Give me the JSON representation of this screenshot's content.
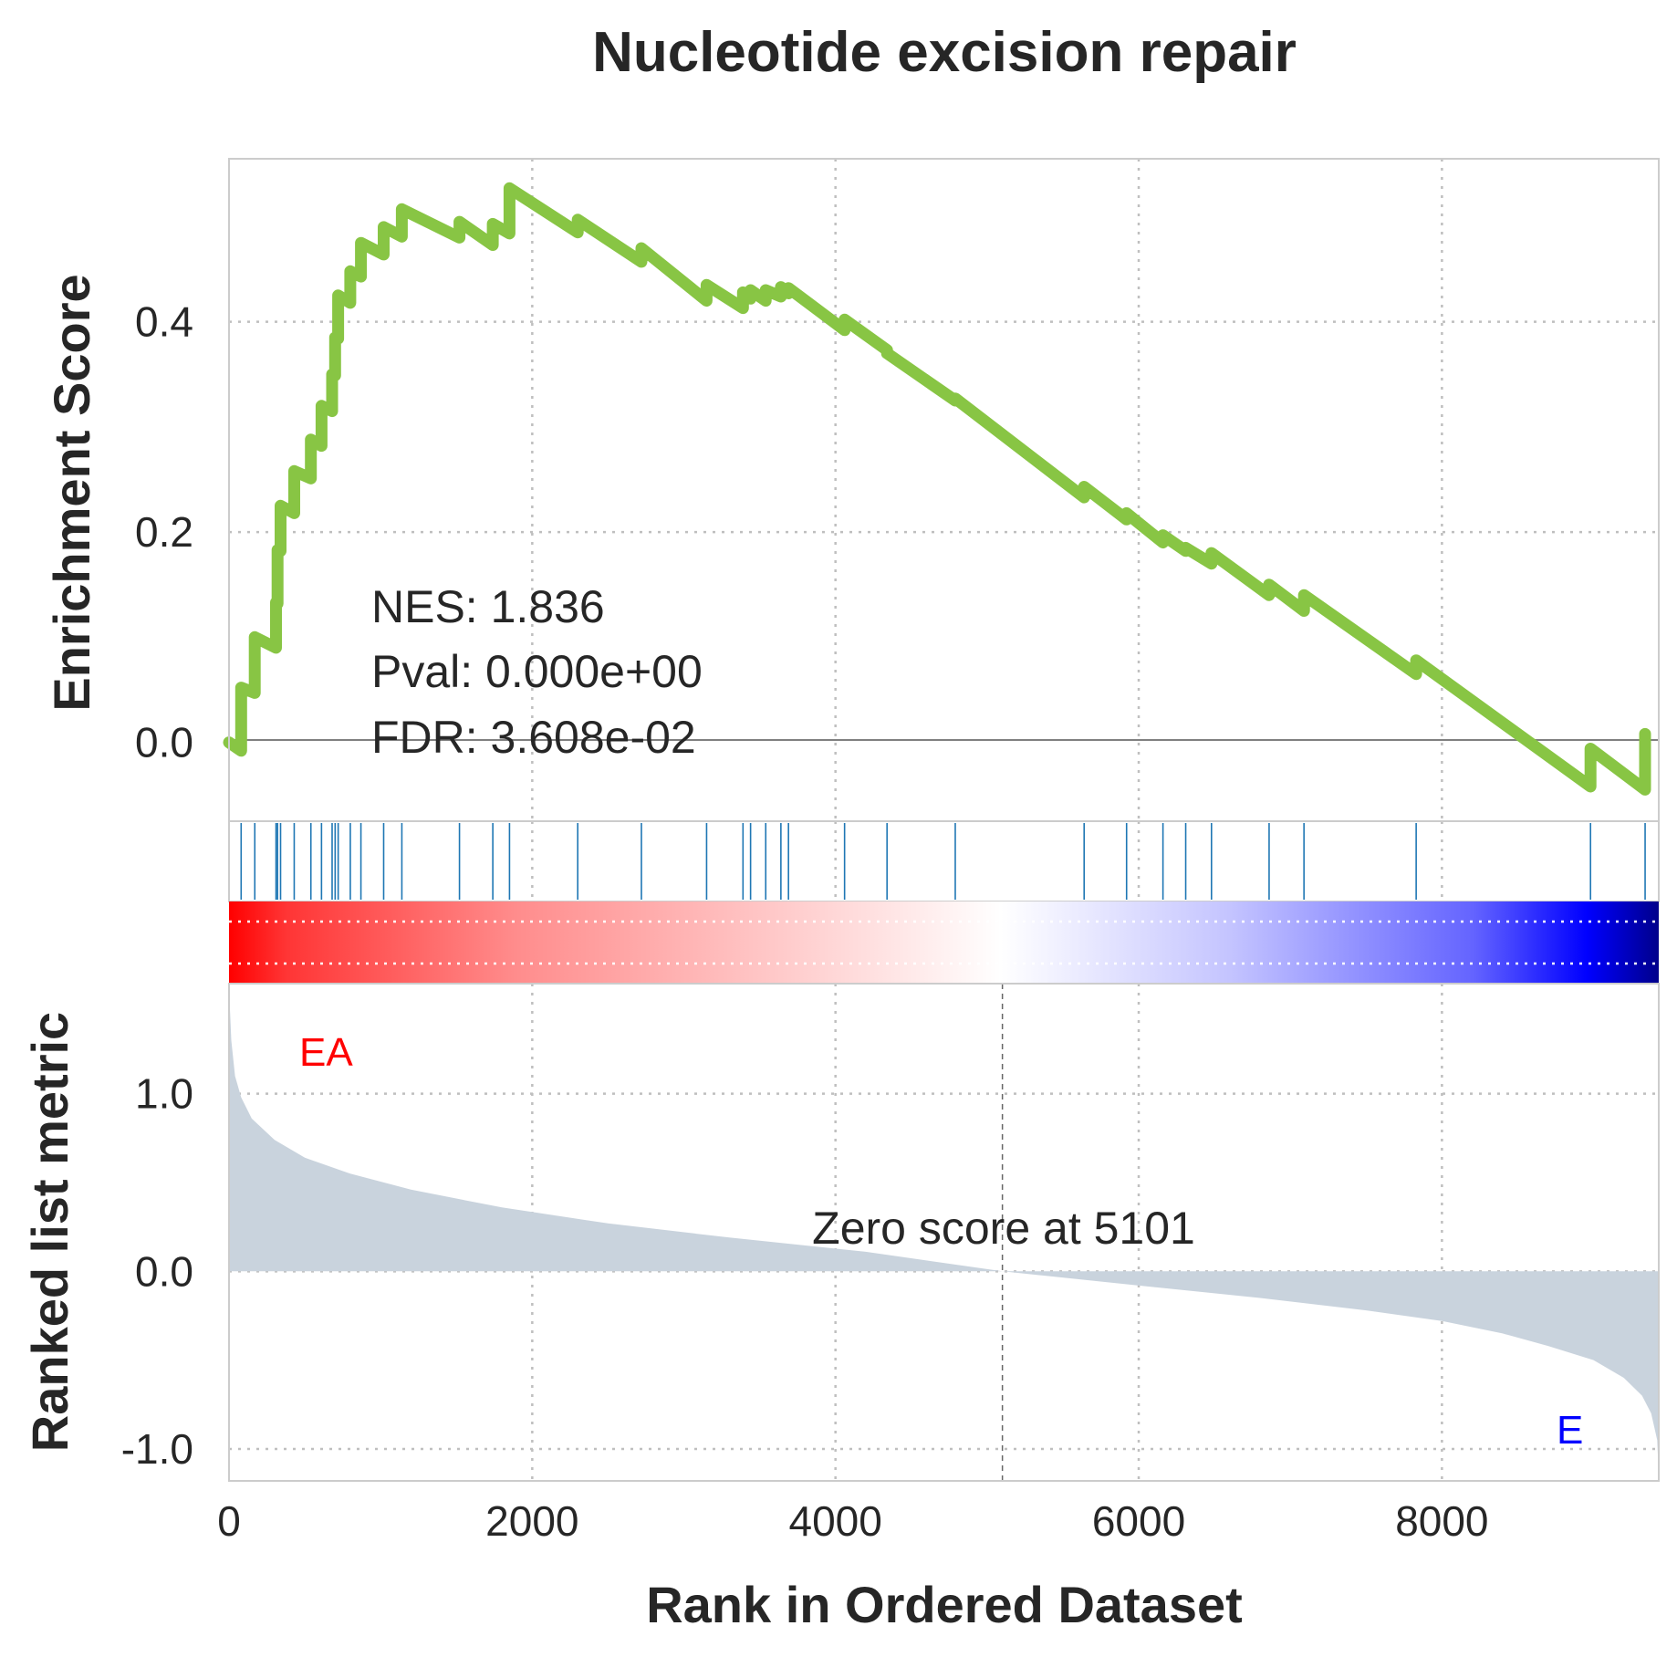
{
  "chart_data": {
    "type": "line",
    "title": "Nucleotide excision repair",
    "xlabel": "Rank in Ordered Dataset",
    "xlim": [
      0,
      9430
    ],
    "x_ticks": [
      0,
      2000,
      4000,
      6000,
      8000
    ],
    "x_tick_labels": [
      "0",
      "2000",
      "4000",
      "6000",
      "8000"
    ],
    "grid": true,
    "enrichment_panel": {
      "ylabel": "Enrichment Score",
      "ylim": [
        -0.075,
        0.555
      ],
      "y_ticks": [
        0.0,
        0.2,
        0.4
      ],
      "y_tick_labels": [
        "0.0",
        "0.2",
        "0.4"
      ],
      "color": "#88c544",
      "stats": [
        "NES: 1.836",
        "Pval: 0.000e+00",
        "FDR: 3.608e-02"
      ],
      "hits": [
        80,
        170,
        310,
        320,
        340,
        430,
        540,
        610,
        680,
        700,
        720,
        800,
        870,
        1020,
        1140,
        1520,
        1740,
        1850,
        2300,
        2720,
        3150,
        3390,
        3440,
        3540,
        3640,
        3690,
        4060,
        4340,
        4790,
        5640,
        5920,
        6160,
        6310,
        6480,
        6860,
        7090,
        7830,
        8980,
        9340
      ],
      "es_curve": {
        "x": [
          0,
          80,
          80,
          170,
          170,
          310,
          310,
          320,
          320,
          340,
          340,
          430,
          430,
          540,
          540,
          610,
          610,
          680,
          680,
          700,
          700,
          720,
          720,
          800,
          800,
          870,
          870,
          1020,
          1020,
          1140,
          1140,
          1520,
          1520,
          1740,
          1740,
          1850,
          1850,
          2300,
          2300,
          2720,
          2720,
          3150,
          3150,
          3390,
          3390,
          3440,
          3440,
          3540,
          3540,
          3640,
          3640,
          3690,
          3690,
          4060,
          4060,
          4340,
          4340,
          4790,
          4790,
          5640,
          5640,
          5920,
          5920,
          6160,
          6160,
          6310,
          6310,
          6480,
          6480,
          6860,
          6860,
          7090,
          7090,
          7830,
          7830,
          8980,
          8980,
          9340,
          9340
        ],
        "y": [
          0.0,
          -0.008,
          0.052,
          0.047,
          0.1,
          0.09,
          0.133,
          0.132,
          0.183,
          0.182,
          0.225,
          0.218,
          0.258,
          0.251,
          0.288,
          0.282,
          0.32,
          0.315,
          0.35,
          0.349,
          0.385,
          0.384,
          0.425,
          0.418,
          0.448,
          0.443,
          0.475,
          0.464,
          0.49,
          0.481,
          0.507,
          0.48,
          0.495,
          0.473,
          0.493,
          0.484,
          0.527,
          0.485,
          0.497,
          0.457,
          0.47,
          0.42,
          0.435,
          0.413,
          0.428,
          0.422,
          0.43,
          0.42,
          0.43,
          0.424,
          0.433,
          0.427,
          0.432,
          0.392,
          0.402,
          0.373,
          0.37,
          0.325,
          0.327,
          0.233,
          0.243,
          0.212,
          0.218,
          0.19,
          0.197,
          0.182,
          0.185,
          0.17,
          0.18,
          0.14,
          0.15,
          0.125,
          0.14,
          0.065,
          0.078,
          -0.042,
          -0.006,
          -0.045,
          0.008
        ]
      }
    },
    "metric_panel": {
      "ylabel": "Ranked list metric",
      "ylim": [
        -1.18,
        1.62
      ],
      "y_ticks": [
        1.0,
        0.0,
        -1.0
      ],
      "y_tick_labels": [
        "1.0",
        "0.0",
        "-1.0"
      ],
      "color": "#c9d3dd",
      "pos_label": "EA",
      "pos_color": "#ff0000",
      "neg_label": "E",
      "neg_color": "#0000ff",
      "zero_score_rank": 5101,
      "zero_score_label": "Zero score at 5101",
      "metric_curve": {
        "x": [
          0,
          15,
          40,
          80,
          150,
          300,
          500,
          800,
          1200,
          1800,
          2500,
          3300,
          4200,
          5101,
          6000,
          6800,
          7500,
          8000,
          8400,
          8700,
          9000,
          9200,
          9320,
          9380,
          9420,
          9430
        ],
        "y": [
          1.6,
          1.3,
          1.1,
          0.98,
          0.86,
          0.74,
          0.64,
          0.55,
          0.46,
          0.36,
          0.27,
          0.19,
          0.11,
          0.0,
          -0.08,
          -0.15,
          -0.22,
          -0.28,
          -0.35,
          -0.42,
          -0.5,
          -0.6,
          -0.7,
          -0.8,
          -0.95,
          -1.15
        ]
      }
    },
    "gradient_band": {
      "colors": [
        "#ff0000",
        "#ffffff",
        "#0000ff",
        "#00008b"
      ]
    }
  }
}
